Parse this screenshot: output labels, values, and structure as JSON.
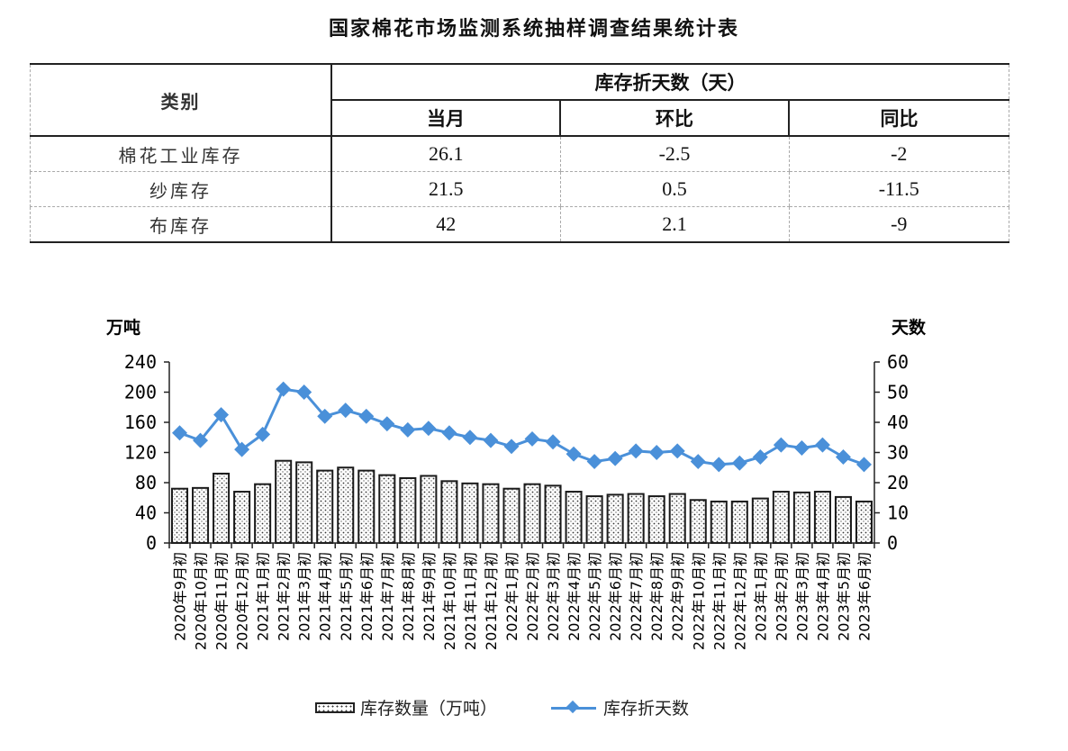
{
  "title": "国家棉花市场监测系统抽样调查结果统计表",
  "table": {
    "category_header": "类别",
    "group_header": "库存折天数（天）",
    "columns": [
      "当月",
      "环比",
      "同比"
    ],
    "rows": [
      {
        "category": "棉花工业库存",
        "current": "26.1",
        "mom": "-2.5",
        "yoy": "-2"
      },
      {
        "category": "纱库存",
        "current": "21.5",
        "mom": "0.5",
        "yoy": "-11.5"
      },
      {
        "category": "布库存",
        "current": "42",
        "mom": "2.1",
        "yoy": "-9"
      }
    ]
  },
  "colors": {
    "line": "#4a90d9",
    "bar_border": "#222222",
    "axis": "#222222"
  },
  "chart_data": {
    "type": "bar+line",
    "title": "",
    "y_left_label": "万吨",
    "y_right_label": "天数",
    "ylim_left": [
      0,
      240
    ],
    "yticks_left": [
      0,
      40,
      80,
      120,
      160,
      200,
      240
    ],
    "ylim_right": [
      0,
      60
    ],
    "yticks_right": [
      0,
      10,
      20,
      30,
      40,
      50,
      60
    ],
    "grid": false,
    "legend_position": "bottom",
    "categories": [
      "2020年9月初",
      "2020年10月初",
      "2020年11月初",
      "2020年12月初",
      "2021年1月初",
      "2021年2月初",
      "2021年3月初",
      "2021年4月初",
      "2021年5月初",
      "2021年6月初",
      "2021年7月初",
      "2021年8月初",
      "2021年9月初",
      "2021年10月初",
      "2021年11月初",
      "2021年12月初",
      "2022年1月初",
      "2022年2月初",
      "2022年3月初",
      "2022年4月初",
      "2022年5月初",
      "2022年6月初",
      "2022年7月初",
      "2022年8月初",
      "2022年9月初",
      "2022年10月初",
      "2022年11月初",
      "2022年12月初",
      "2023年1月初",
      "2023年2月初",
      "2023年3月初",
      "2023年4月初",
      "2023年5月初",
      "2023年6月初"
    ],
    "series": [
      {
        "name": "库存数量（万吨）",
        "type": "bar",
        "axis": "left",
        "values": [
          72,
          73,
          92,
          68,
          78,
          109,
          107,
          96,
          100,
          96,
          90,
          86,
          89,
          82,
          79,
          78,
          72,
          78,
          76,
          68,
          62,
          64,
          65,
          62,
          65,
          57,
          55,
          55,
          59,
          68,
          67,
          68,
          61,
          55
        ]
      },
      {
        "name": "库存折天数",
        "type": "line",
        "axis": "right",
        "values": [
          36.5,
          34,
          42.5,
          31,
          36,
          51,
          50,
          42,
          44,
          42,
          39.5,
          37.5,
          38,
          36.5,
          35,
          34,
          32,
          34.5,
          33.5,
          29.5,
          27,
          28,
          30.5,
          30,
          30.5,
          27,
          26,
          26.5,
          28.5,
          32.5,
          31.5,
          32.5,
          28.5,
          26
        ]
      }
    ]
  }
}
